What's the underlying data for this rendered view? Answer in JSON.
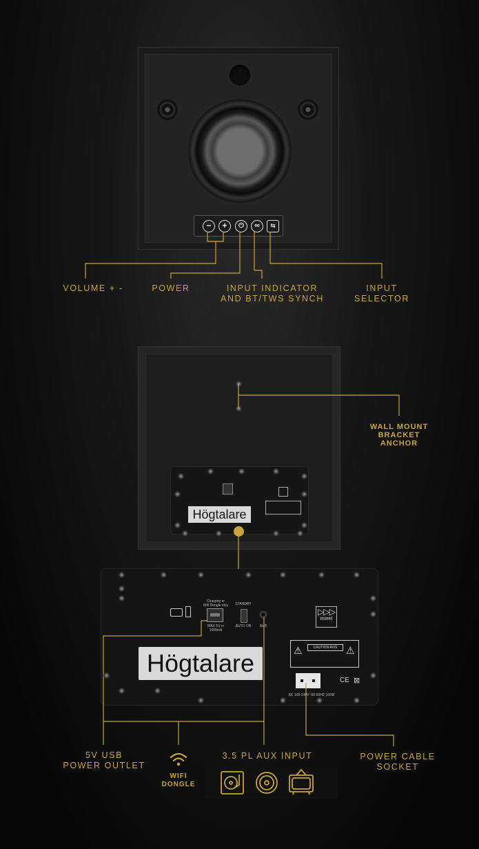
{
  "colors": {
    "accent": "#c9a43a",
    "background": "#0b0b0b"
  },
  "front_labels": {
    "volume": "VOLUME + -",
    "power": "POWER",
    "input_indicator_line1": "INPUT INDICATOR",
    "input_indicator_line2": "AND BT/TWS SYNCH",
    "input_selector_line1": "INPUT",
    "input_selector_line2": "SELECTOR"
  },
  "front_buttons": [
    "−",
    "+",
    "⏻",
    "∞",
    "⇆"
  ],
  "back_labels": {
    "wall_mount_line1": "WALL MOUNT",
    "wall_mount_line2": "BRACKET",
    "wall_mount_line3": "ANCHOR"
  },
  "plate": {
    "brand_label": "Högtalare",
    "charging_note_line1": "Charging or",
    "charging_note_line2": "Wifi Dongle only",
    "usb_rating": "MAX 5V ⎓ 1000mA",
    "standby": "STANDBY",
    "auto_on": "AUTO ON",
    "aux": "AUX",
    "morel": "morel",
    "caution": "CAUTION AVIS",
    "power_rating": "AC 100-240V~50-60HZ 100W",
    "ce_mark": "CE"
  },
  "bottom_labels": {
    "usb_line1": "5V USB",
    "usb_line2": "POWER OUTLET",
    "wifi_line1": "WIFI",
    "wifi_line2": "DONGLE",
    "aux_input": "3.5 PL AUX INPUT",
    "power_line1": "POWER CABLE",
    "power_line2": "SOCKET"
  },
  "icons": [
    "wifi-icon",
    "turntable-icon",
    "vinyl-icon",
    "tv-icon"
  ]
}
